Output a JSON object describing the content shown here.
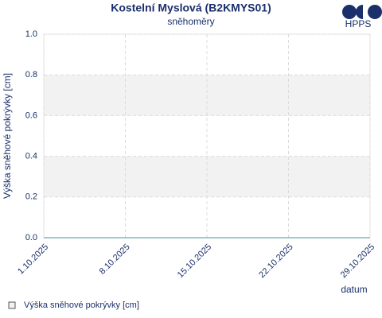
{
  "chart_data": {
    "type": "line",
    "title": "Kostelní Myslová (B2KMYS01)",
    "subtitle": "sněhoměry",
    "logo": "HPPS",
    "x_label": "datum",
    "y_label": "Výška sněhové pokrývky [cm]",
    "x": [
      "1.10.2025",
      "8.10.2025",
      "15.10.2025",
      "22.10.2025",
      "29.10.2025"
    ],
    "series": [
      {
        "name": "Výška sněhové pokrývky [cm]",
        "color": "#7ab8c6",
        "values": [
          0,
          0,
          0,
          0,
          0
        ]
      }
    ],
    "ylim": [
      0,
      1
    ],
    "yticks": [
      {
        "value": 0,
        "label": "0.0"
      },
      0.2,
      0.4,
      0.6,
      0.8,
      {
        "value": 1,
        "label": "1.0"
      }
    ],
    "grid": true,
    "alternate_bands": true,
    "legend": "bottom-left"
  }
}
